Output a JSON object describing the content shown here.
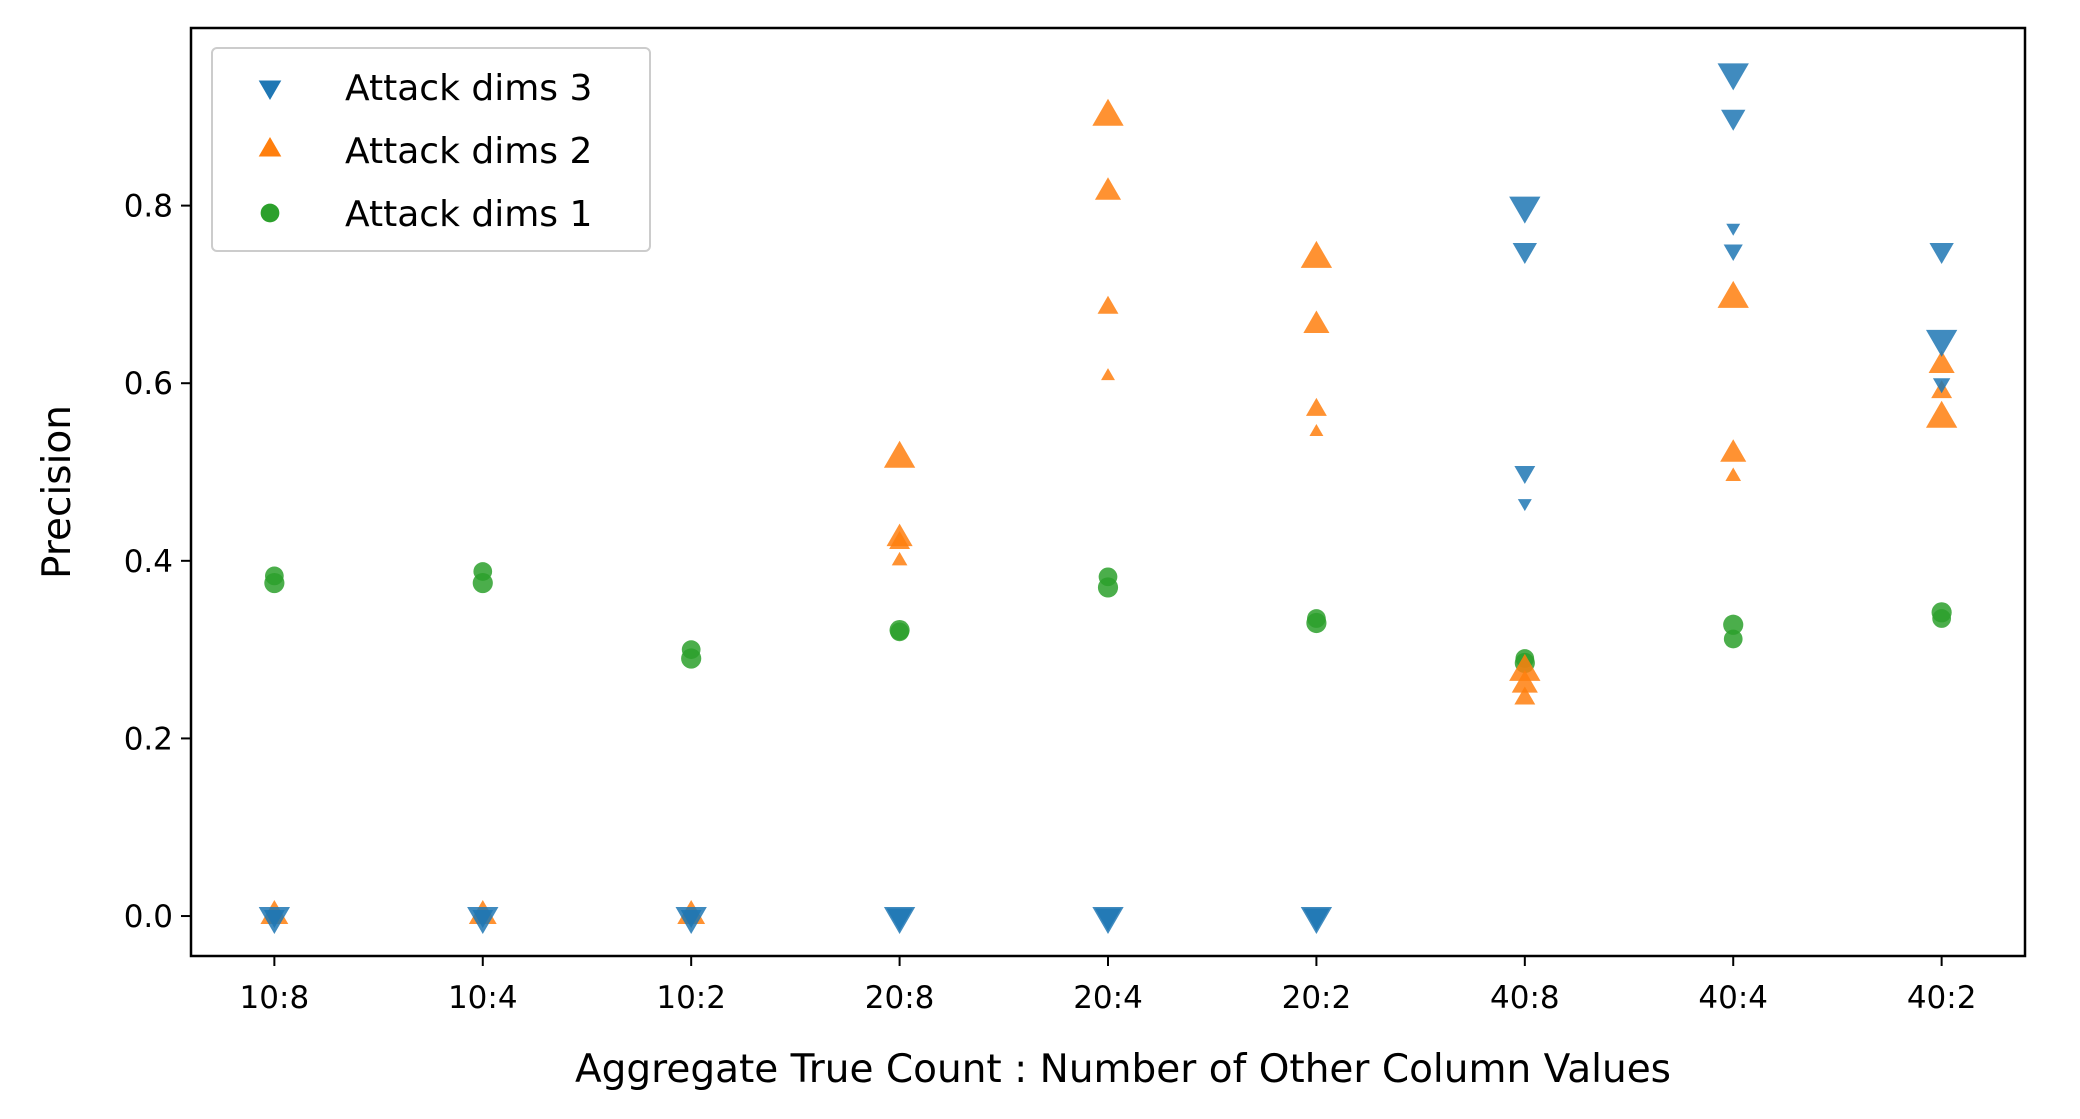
{
  "chart_data": {
    "type": "scatter",
    "xlabel": "Aggregate True Count : Number of Other Column Values",
    "ylabel": "Precision",
    "categories": [
      "10:8",
      "10:4",
      "10:2",
      "20:8",
      "20:4",
      "20:2",
      "40:8",
      "40:4",
      "40:2"
    ],
    "ylim": [
      -0.045,
      1.0
    ],
    "yticks": [
      0.0,
      0.2,
      0.4,
      0.6,
      0.8
    ],
    "grid": false,
    "legend_position": "top-left",
    "series": [
      {
        "name": "Attack dims 3",
        "marker": "triangle-down",
        "color": "#1f77b4",
        "points": [
          {
            "x": "10:8",
            "y": 0.0,
            "size": 18
          },
          {
            "x": "10:8",
            "y": 0.0,
            "size": 12
          },
          {
            "x": "10:4",
            "y": 0.0,
            "size": 18
          },
          {
            "x": "10:4",
            "y": 0.0,
            "size": 12
          },
          {
            "x": "10:2",
            "y": 0.0,
            "size": 18
          },
          {
            "x": "10:2",
            "y": 0.0,
            "size": 12
          },
          {
            "x": "20:8",
            "y": 0.0,
            "size": 18
          },
          {
            "x": "20:8",
            "y": 0.0,
            "size": 15
          },
          {
            "x": "20:4",
            "y": 0.0,
            "size": 18
          },
          {
            "x": "20:4",
            "y": 0.0,
            "size": 15
          },
          {
            "x": "20:2",
            "y": 0.0,
            "size": 18
          },
          {
            "x": "20:2",
            "y": 0.0,
            "size": 15
          },
          {
            "x": "40:8",
            "y": 0.8,
            "size": 18
          },
          {
            "x": "40:8",
            "y": 0.75,
            "size": 14
          },
          {
            "x": "40:8",
            "y": 0.5,
            "size": 12
          },
          {
            "x": "40:8",
            "y": 0.465,
            "size": 8
          },
          {
            "x": "40:4",
            "y": 0.95,
            "size": 18
          },
          {
            "x": "40:4",
            "y": 0.9,
            "size": 14
          },
          {
            "x": "40:4",
            "y": 0.775,
            "size": 8
          },
          {
            "x": "40:4",
            "y": 0.75,
            "size": 11
          },
          {
            "x": "40:2",
            "y": 0.75,
            "size": 14
          },
          {
            "x": "40:2",
            "y": 0.65,
            "size": 18
          },
          {
            "x": "40:2",
            "y": 0.6,
            "size": 10
          }
        ]
      },
      {
        "name": "Attack dims 2",
        "marker": "triangle-up",
        "color": "#ff7f0e",
        "points": [
          {
            "x": "10:8",
            "y": 0.0,
            "size": 16
          },
          {
            "x": "10:4",
            "y": 0.0,
            "size": 16
          },
          {
            "x": "10:2",
            "y": 0.0,
            "size": 16
          },
          {
            "x": "20:8",
            "y": 0.515,
            "size": 18
          },
          {
            "x": "20:8",
            "y": 0.425,
            "size": 15
          },
          {
            "x": "20:8",
            "y": 0.42,
            "size": 12
          },
          {
            "x": "20:8",
            "y": 0.4,
            "size": 9
          },
          {
            "x": "20:4",
            "y": 0.9,
            "size": 18
          },
          {
            "x": "20:4",
            "y": 0.815,
            "size": 15
          },
          {
            "x": "20:4",
            "y": 0.685,
            "size": 12
          },
          {
            "x": "20:4",
            "y": 0.608,
            "size": 8
          },
          {
            "x": "20:2",
            "y": 0.74,
            "size": 18
          },
          {
            "x": "20:2",
            "y": 0.665,
            "size": 15
          },
          {
            "x": "20:2",
            "y": 0.57,
            "size": 12
          },
          {
            "x": "20:2",
            "y": 0.545,
            "size": 8
          },
          {
            "x": "40:8",
            "y": 0.275,
            "size": 18
          },
          {
            "x": "40:8",
            "y": 0.26,
            "size": 15
          },
          {
            "x": "40:8",
            "y": 0.245,
            "size": 12
          },
          {
            "x": "40:4",
            "y": 0.695,
            "size": 18
          },
          {
            "x": "40:4",
            "y": 0.52,
            "size": 15
          },
          {
            "x": "40:4",
            "y": 0.495,
            "size": 9
          },
          {
            "x": "40:2",
            "y": 0.62,
            "size": 15
          },
          {
            "x": "40:2",
            "y": 0.59,
            "size": 12
          },
          {
            "x": "40:2",
            "y": 0.56,
            "size": 18
          }
        ]
      },
      {
        "name": "Attack dims 1",
        "marker": "circle",
        "color": "#2ca02c",
        "points": [
          {
            "x": "10:8",
            "y": 0.383,
            "size": 13
          },
          {
            "x": "10:8",
            "y": 0.375,
            "size": 14
          },
          {
            "x": "10:4",
            "y": 0.388,
            "size": 13
          },
          {
            "x": "10:4",
            "y": 0.375,
            "size": 14
          },
          {
            "x": "10:2",
            "y": 0.3,
            "size": 13
          },
          {
            "x": "10:2",
            "y": 0.29,
            "size": 14
          },
          {
            "x": "20:8",
            "y": 0.322,
            "size": 14
          },
          {
            "x": "20:8",
            "y": 0.32,
            "size": 13
          },
          {
            "x": "20:4",
            "y": 0.382,
            "size": 13
          },
          {
            "x": "20:4",
            "y": 0.37,
            "size": 14
          },
          {
            "x": "20:2",
            "y": 0.335,
            "size": 13
          },
          {
            "x": "20:2",
            "y": 0.33,
            "size": 14
          },
          {
            "x": "40:8",
            "y": 0.29,
            "size": 13
          },
          {
            "x": "40:8",
            "y": 0.285,
            "size": 14
          },
          {
            "x": "40:4",
            "y": 0.328,
            "size": 14
          },
          {
            "x": "40:4",
            "y": 0.312,
            "size": 13
          },
          {
            "x": "40:2",
            "y": 0.342,
            "size": 14
          },
          {
            "x": "40:2",
            "y": 0.335,
            "size": 13
          }
        ]
      }
    ]
  }
}
